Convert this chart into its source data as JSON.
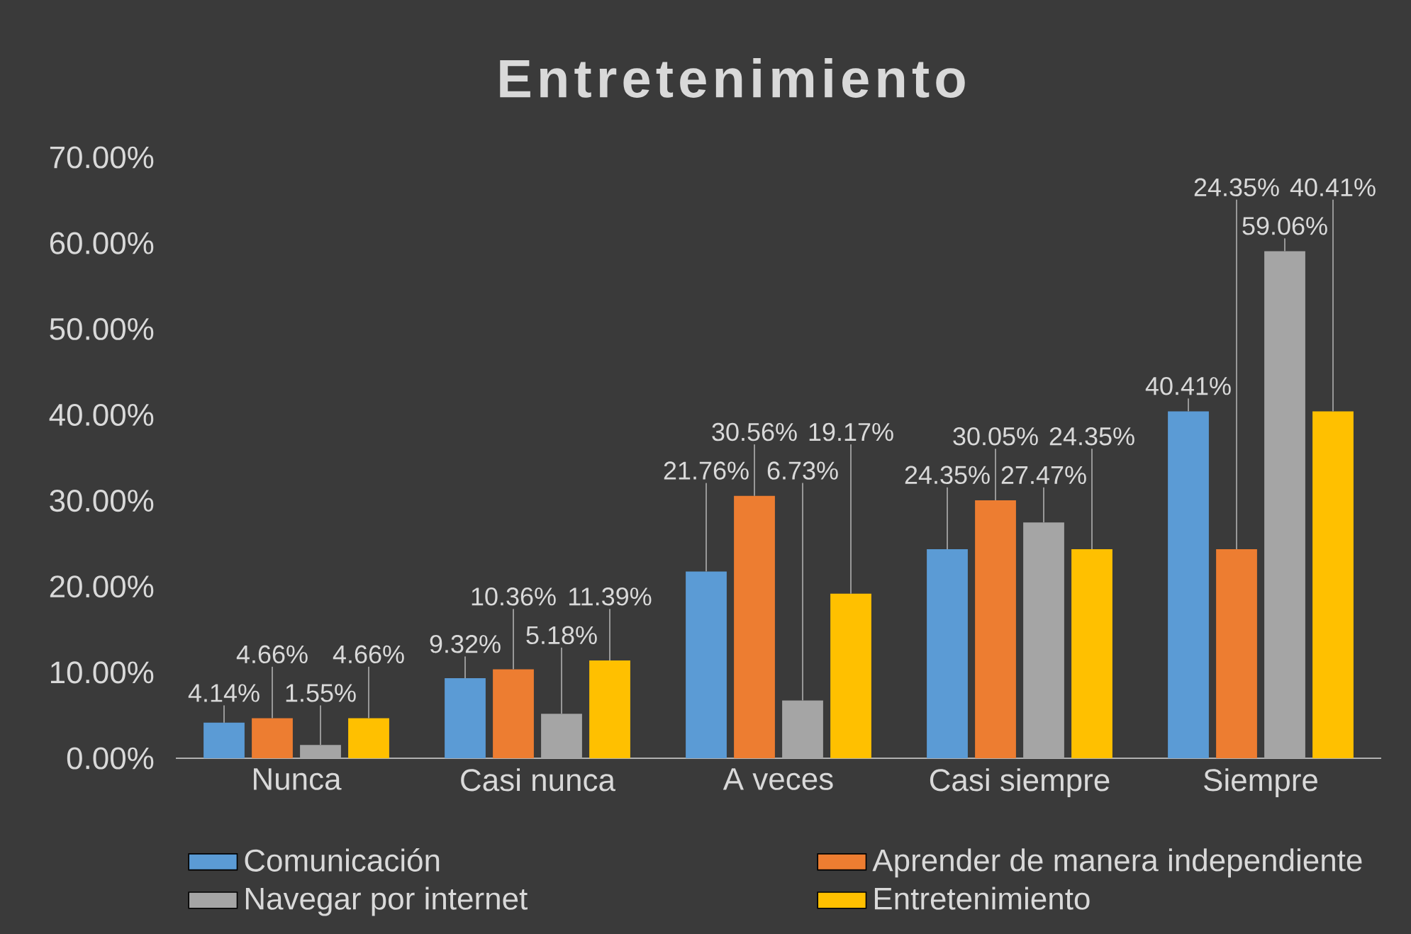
{
  "chart_data": {
    "type": "bar",
    "title": "Entretenimiento",
    "categories": [
      "Nunca",
      "Casi nunca",
      "A veces",
      "Casi siempre",
      "Siempre"
    ],
    "series": [
      {
        "name": "Comunicación",
        "color": "#5b9bd5",
        "values": [
          4.14,
          9.32,
          21.76,
          24.35,
          40.41
        ],
        "value_labels": [
          "4.14%",
          "9.32%",
          "21.76%",
          "24.35%",
          "40.41%"
        ]
      },
      {
        "name": "Aprender de manera independiente",
        "color": "#ed7d31",
        "values": [
          4.66,
          10.36,
          30.56,
          30.05,
          24.35
        ],
        "value_labels": [
          "4.66%",
          "10.36%",
          "30.56%",
          "30.05%",
          "24.35%"
        ]
      },
      {
        "name": "Navegar por internet",
        "color": "#a5a5a5",
        "values": [
          1.55,
          5.18,
          6.73,
          27.47,
          59.06
        ],
        "value_labels": [
          "1.55%",
          "5.18%",
          "6.73%",
          "27.47%",
          "59.06%"
        ]
      },
      {
        "name": "Entretenimiento",
        "color": "#ffc000",
        "values": [
          4.66,
          11.39,
          19.17,
          24.35,
          40.41
        ],
        "value_labels": [
          "4.66%",
          "11.39%",
          "19.17%",
          "24.35%",
          "40.41%"
        ]
      }
    ],
    "ylim": [
      0,
      70
    ],
    "yticks": [
      {
        "value": 0,
        "label": "0.00%"
      },
      {
        "value": 10,
        "label": "10.00%"
      },
      {
        "value": 20,
        "label": "20.00%"
      },
      {
        "value": 30,
        "label": "30.00%"
      },
      {
        "value": 40,
        "label": "40.00%"
      },
      {
        "value": 50,
        "label": "50.00%"
      },
      {
        "value": 60,
        "label": "60.00%"
      },
      {
        "value": 70,
        "label": "70.00%"
      }
    ],
    "legend": "bottom"
  }
}
